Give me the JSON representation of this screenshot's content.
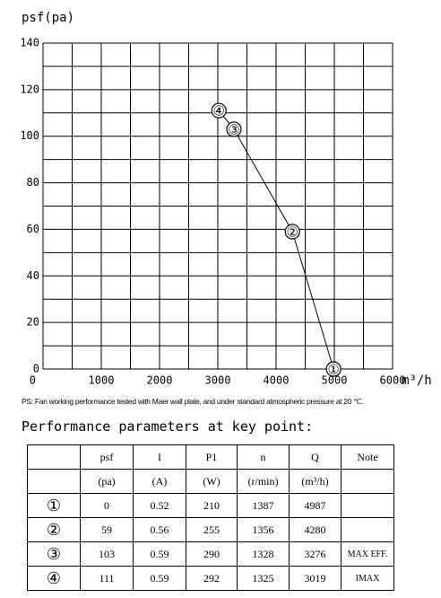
{
  "chart_data": {
    "type": "line",
    "y_label": "psf(pa)",
    "x_label": "m³/h",
    "series": [
      {
        "x": [
          4987,
          4280,
          3276,
          3019
        ],
        "values": [
          0,
          59,
          103,
          111
        ],
        "labels": [
          "①",
          "②",
          "③",
          "④"
        ],
        "color": "#000000"
      }
    ],
    "xlim": [
      0,
      6000
    ],
    "ylim": [
      0,
      140
    ],
    "xticks": [
      0,
      1000,
      2000,
      3000,
      4000,
      5000,
      6000
    ],
    "yticks": [
      0,
      20,
      40,
      60,
      80,
      100,
      120,
      140
    ],
    "xgrid": [
      0,
      500,
      1000,
      1500,
      2000,
      2500,
      3000,
      3500,
      4000,
      4500,
      5000,
      5500,
      6000
    ],
    "ygrid": [
      0,
      10,
      20,
      30,
      40,
      50,
      60,
      70,
      80,
      90,
      100,
      110,
      120,
      130,
      140
    ],
    "grid": true
  },
  "note": "PS: Fan working performance tested with Maer wall plate, and under standard atmospheric pressure at 20 ℃.",
  "table": {
    "title": "Performance parameters at key point:",
    "header": [
      null,
      "psf",
      "I",
      "P1",
      "n",
      "Q",
      "Note"
    ],
    "units": [
      null,
      "(pa)",
      "(A)",
      "(W)",
      "(r/min)",
      "(m³/h)",
      null
    ],
    "rows": [
      [
        "①",
        0,
        0.52,
        210,
        1387,
        4987,
        null
      ],
      [
        "②",
        59,
        0.56,
        255,
        1356,
        4280,
        null
      ],
      [
        "③",
        103,
        0.59,
        290,
        1328,
        3276,
        "MAX EFF."
      ],
      [
        "④",
        111,
        0.59,
        292,
        1325,
        3019,
        "IMAX"
      ]
    ]
  }
}
